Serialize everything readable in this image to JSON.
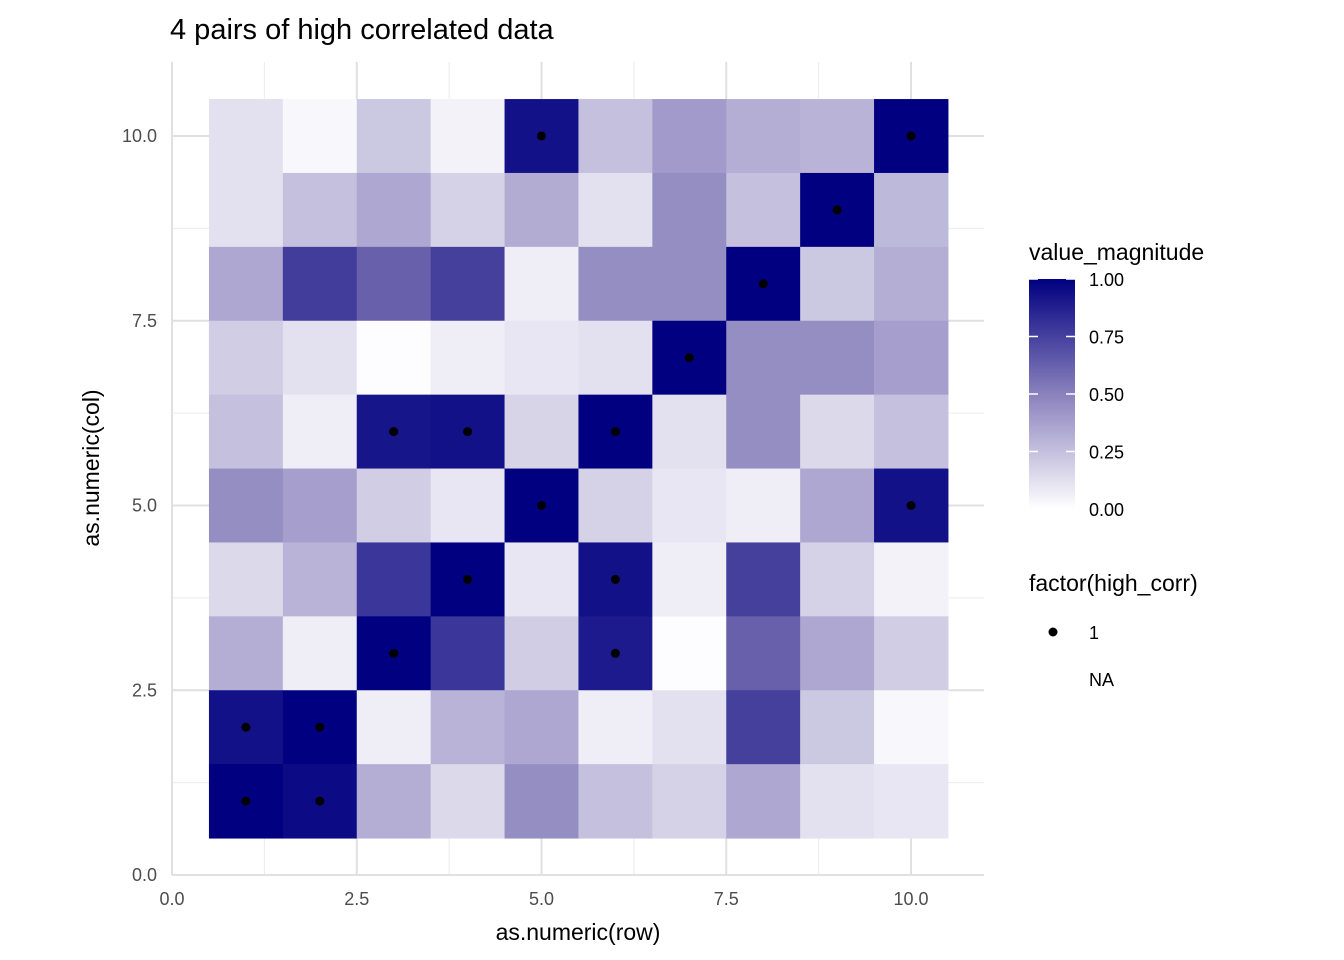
{
  "chart_data": {
    "type": "heatmap",
    "title": "4 pairs of high correlated data",
    "xlabel": "as.numeric(row)",
    "ylabel": "as.numeric(col)",
    "xlim": [
      0,
      10.5
    ],
    "ylim": [
      0,
      10.5
    ],
    "x_ticks": [
      "0.0",
      "2.5",
      "5.0",
      "7.5",
      "10.0"
    ],
    "y_ticks": [
      "0.0",
      "2.5",
      "5.0",
      "7.5",
      "10.0"
    ],
    "x_tick_values": [
      0,
      2.5,
      5,
      7.5,
      10
    ],
    "y_tick_values": [
      0,
      2.5,
      5,
      7.5,
      10
    ],
    "color_scale": {
      "name": "value_magnitude",
      "low": "#ffffff",
      "high": "#000080",
      "breaks": [
        "0.00",
        "0.25",
        "0.50",
        "0.75",
        "1.00"
      ],
      "break_values": [
        0,
        0.25,
        0.5,
        0.75,
        1
      ]
    },
    "point_legend": {
      "name": "factor(high_corr)",
      "entries": [
        "1",
        "NA"
      ]
    },
    "grid": true,
    "legend_position": "right",
    "rows_y_descending": [
      10,
      9,
      8,
      7,
      6,
      5,
      4,
      3,
      2,
      1
    ],
    "columns_x": [
      1,
      2,
      3,
      4,
      5,
      6,
      7,
      8,
      9,
      10
    ],
    "values": [
      [
        0.12,
        0.03,
        0.22,
        0.05,
        0.92,
        0.25,
        0.4,
        0.32,
        0.3,
        1.0
      ],
      [
        0.12,
        0.25,
        0.35,
        0.18,
        0.33,
        0.12,
        0.45,
        0.25,
        1.0,
        0.28
      ],
      [
        0.35,
        0.72,
        0.55,
        0.7,
        0.07,
        0.45,
        0.45,
        1.0,
        0.22,
        0.32
      ],
      [
        0.2,
        0.12,
        0.01,
        0.07,
        0.1,
        0.12,
        1.0,
        0.45,
        0.45,
        0.38
      ],
      [
        0.25,
        0.07,
        0.9,
        0.92,
        0.17,
        1.0,
        0.12,
        0.45,
        0.15,
        0.25
      ],
      [
        0.45,
        0.38,
        0.2,
        0.1,
        1.0,
        0.18,
        0.1,
        0.07,
        0.35,
        0.92
      ],
      [
        0.15,
        0.3,
        0.75,
        1.0,
        0.1,
        0.92,
        0.07,
        0.7,
        0.18,
        0.05
      ],
      [
        0.32,
        0.07,
        1.0,
        0.75,
        0.2,
        0.88,
        0.01,
        0.55,
        0.35,
        0.2
      ],
      [
        0.92,
        1.0,
        0.07,
        0.3,
        0.35,
        0.07,
        0.12,
        0.7,
        0.22,
        0.03
      ],
      [
        1.0,
        0.95,
        0.32,
        0.15,
        0.45,
        0.25,
        0.18,
        0.35,
        0.12,
        0.1
      ]
    ],
    "high_corr_points": [
      [
        5,
        10
      ],
      [
        10,
        10
      ],
      [
        9,
        9
      ],
      [
        8,
        8
      ],
      [
        7,
        7
      ],
      [
        3,
        6
      ],
      [
        4,
        6
      ],
      [
        6,
        6
      ],
      [
        5,
        5
      ],
      [
        10,
        5
      ],
      [
        4,
        4
      ],
      [
        6,
        4
      ],
      [
        3,
        3
      ],
      [
        6,
        3
      ],
      [
        1,
        2
      ],
      [
        2,
        2
      ],
      [
        1,
        1
      ],
      [
        2,
        1
      ]
    ]
  }
}
